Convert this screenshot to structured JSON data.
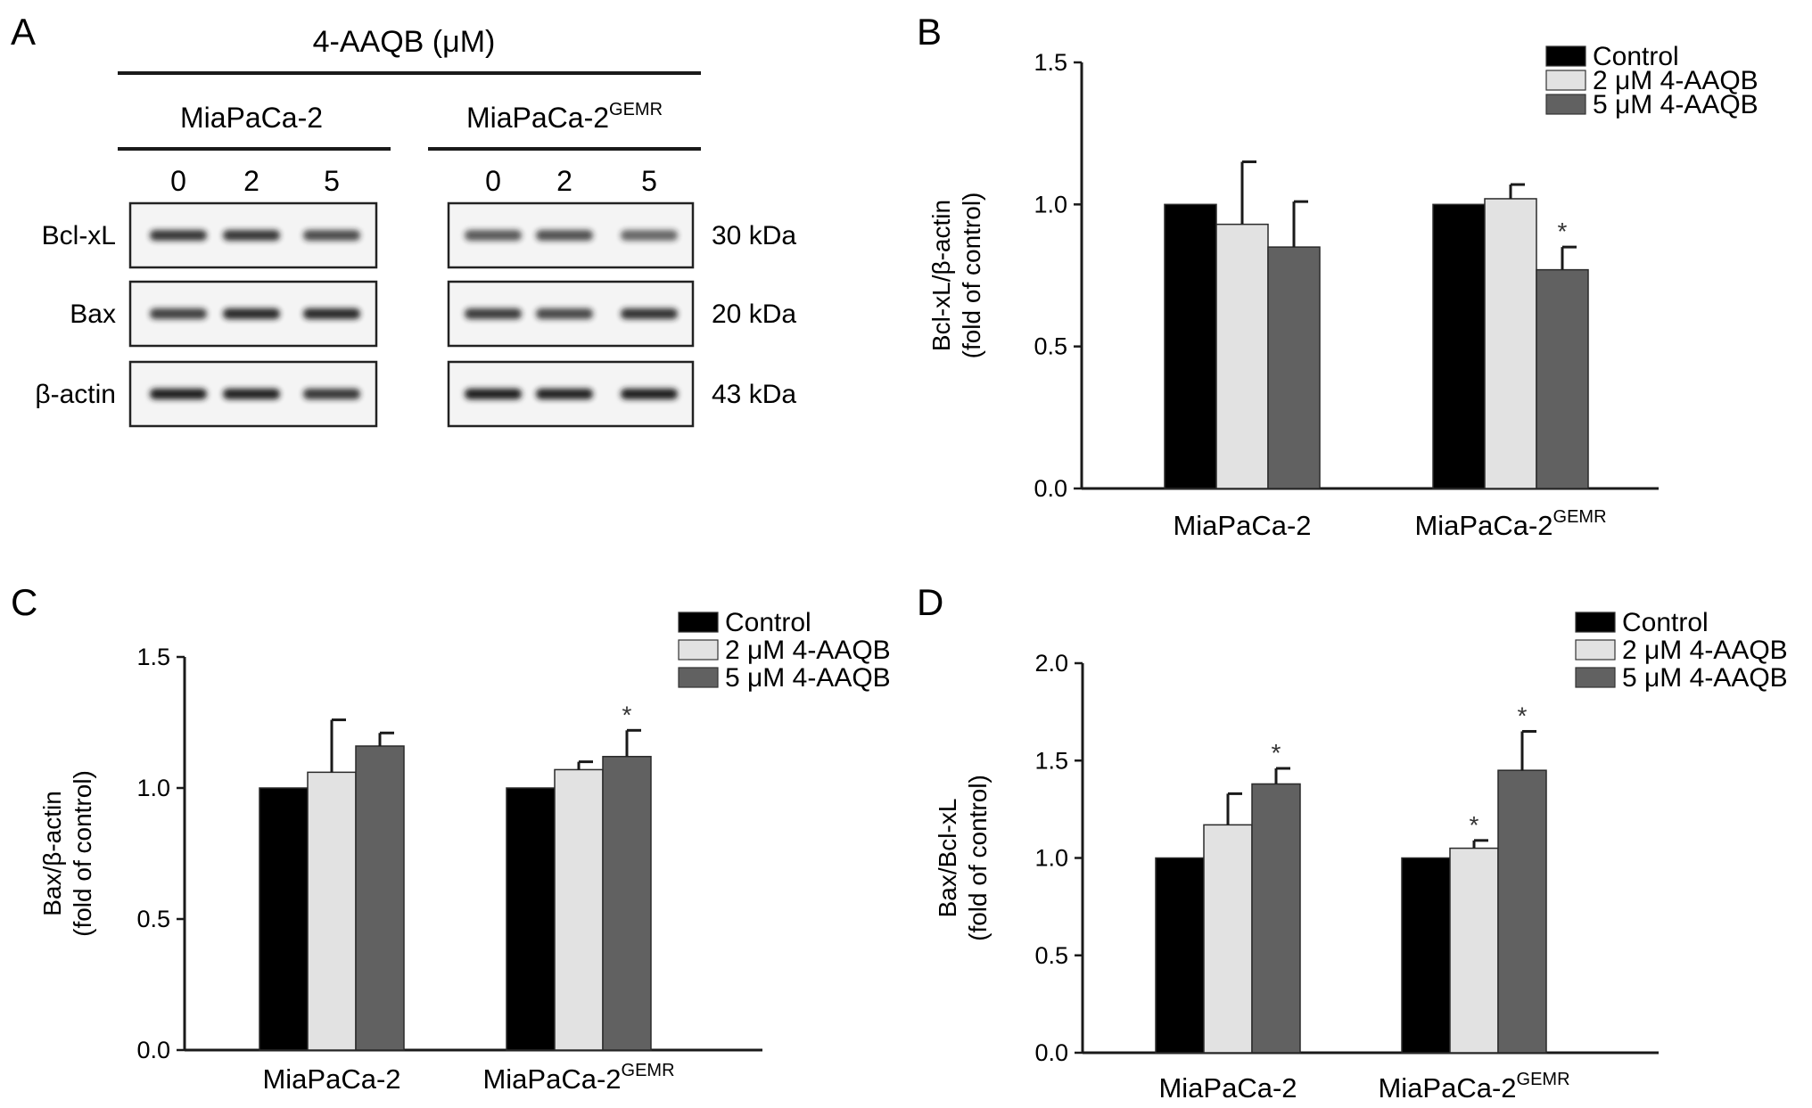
{
  "figure": {
    "panel_labels": {
      "a": "A",
      "b": "B",
      "c": "C",
      "d": "D"
    }
  },
  "blot": {
    "treatment_label": "4-AAQB (μM)",
    "cell_lines": [
      {
        "name": "MiaPaCa-2",
        "superscript": ""
      },
      {
        "name": "MiaPaCa-2",
        "superscript": "GEMR"
      }
    ],
    "doses": [
      "0",
      "2",
      "5"
    ],
    "rows": [
      {
        "protein": "Bcl-xL",
        "size": "30 kDa"
      },
      {
        "protein": "Bax",
        "size": "20 kDa"
      },
      {
        "protein": "β-actin",
        "size": "43 kDa"
      }
    ],
    "band_intensity": [
      [
        [
          0.88,
          0.88,
          0.78
        ],
        [
          0.72,
          0.76,
          0.66
        ]
      ],
      [
        [
          0.84,
          0.95,
          0.95
        ],
        [
          0.86,
          0.8,
          0.9
        ]
      ],
      [
        [
          1.0,
          0.98,
          0.88
        ],
        [
          1.0,
          0.98,
          1.0
        ]
      ]
    ],
    "colors": {
      "band": "#1b1b1b",
      "membrane": "#f4f4f4",
      "frame": "#222222"
    }
  },
  "chart_data": [
    {
      "panel": "B",
      "type": "bar",
      "categories": [
        {
          "name": "MiaPaCa-2",
          "superscript": ""
        },
        {
          "name": "MiaPaCa-2",
          "superscript": "GEMR"
        }
      ],
      "series": [
        {
          "name": "Control",
          "color": "#000000",
          "values": [
            1.0,
            1.0
          ],
          "errors": [
            0,
            0
          ],
          "significant": [
            false,
            false
          ]
        },
        {
          "name": "2 μM 4-AAQB",
          "color": "#e2e2e2",
          "values": [
            0.93,
            1.02
          ],
          "errors": [
            0.22,
            0.05
          ],
          "significant": [
            false,
            false
          ]
        },
        {
          "name": "5 μM 4-AAQB",
          "color": "#616161",
          "values": [
            0.85,
            0.77
          ],
          "errors": [
            0.16,
            0.08
          ],
          "significant": [
            false,
            true
          ]
        }
      ],
      "ylabel": [
        "Bcl-xL/β-actin",
        "(fold of control)"
      ],
      "ylim": [
        0,
        1.5
      ],
      "yticks": [
        "0.0",
        "0.5",
        "1.0",
        "1.5"
      ],
      "significance_marker": "*",
      "legend_position": "top-right"
    },
    {
      "panel": "C",
      "type": "bar",
      "categories": [
        {
          "name": "MiaPaCa-2",
          "superscript": ""
        },
        {
          "name": "MiaPaCa-2",
          "superscript": "GEMR"
        }
      ],
      "series": [
        {
          "name": "Control",
          "color": "#000000",
          "values": [
            1.0,
            1.0
          ],
          "errors": [
            0,
            0
          ],
          "significant": [
            false,
            false
          ]
        },
        {
          "name": "2 μM 4-AAQB",
          "color": "#e2e2e2",
          "values": [
            1.06,
            1.07
          ],
          "errors": [
            0.2,
            0.03
          ],
          "significant": [
            false,
            false
          ]
        },
        {
          "name": "5 μM 4-AAQB",
          "color": "#616161",
          "values": [
            1.16,
            1.12
          ],
          "errors": [
            0.05,
            0.1
          ],
          "significant": [
            false,
            true
          ]
        }
      ],
      "ylabel": [
        "Bax/β-actin",
        "(fold of control)"
      ],
      "ylim": [
        0,
        1.5
      ],
      "yticks": [
        "0.0",
        "0.5",
        "1.0",
        "1.5"
      ],
      "significance_marker": "*",
      "legend_position": "top-right"
    },
    {
      "panel": "D",
      "type": "bar",
      "categories": [
        {
          "name": "MiaPaCa-2",
          "superscript": ""
        },
        {
          "name": "MiaPaCa-2",
          "superscript": "GEMR"
        }
      ],
      "series": [
        {
          "name": "Control",
          "color": "#000000",
          "values": [
            1.0,
            1.0
          ],
          "errors": [
            0,
            0
          ],
          "significant": [
            false,
            false
          ]
        },
        {
          "name": "2 μM 4-AAQB",
          "color": "#e2e2e2",
          "values": [
            1.17,
            1.05
          ],
          "errors": [
            0.16,
            0.04
          ],
          "significant": [
            false,
            true
          ]
        },
        {
          "name": "5 μM 4-AAQB",
          "color": "#616161",
          "values": [
            1.38,
            1.45
          ],
          "errors": [
            0.08,
            0.2
          ],
          "significant": [
            true,
            true
          ]
        }
      ],
      "ylabel": [
        "Bax/Bcl-xL",
        "(fold of control)"
      ],
      "ylim": [
        0,
        2.0
      ],
      "yticks": [
        "0.0",
        "0.5",
        "1.0",
        "1.5",
        "2.0"
      ],
      "significance_marker": "*",
      "legend_position": "top-right"
    }
  ]
}
